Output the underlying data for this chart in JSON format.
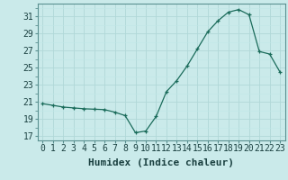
{
  "x": [
    0,
    1,
    2,
    3,
    4,
    5,
    6,
    7,
    8,
    9,
    10,
    11,
    12,
    13,
    14,
    15,
    16,
    17,
    18,
    19,
    20,
    21,
    22,
    23
  ],
  "y": [
    20.8,
    20.6,
    20.4,
    20.3,
    20.2,
    20.15,
    20.1,
    19.8,
    19.4,
    17.4,
    17.6,
    19.3,
    22.2,
    23.5,
    25.2,
    27.2,
    29.2,
    30.5,
    31.5,
    31.8,
    31.2,
    26.9,
    26.6,
    24.5
  ],
  "xlabel": "Humidex (Indice chaleur)",
  "ylabel_ticks": [
    17,
    19,
    21,
    23,
    25,
    27,
    29,
    31
  ],
  "ylim": [
    16.5,
    32.5
  ],
  "xlim": [
    -0.5,
    23.5
  ],
  "bg_color": "#caeaea",
  "grid_major_color": "#b0d8d8",
  "grid_minor_color": "#c0e8e8",
  "line_color": "#1a6b5a",
  "xlabel_fontsize": 8,
  "tick_fontsize": 7
}
